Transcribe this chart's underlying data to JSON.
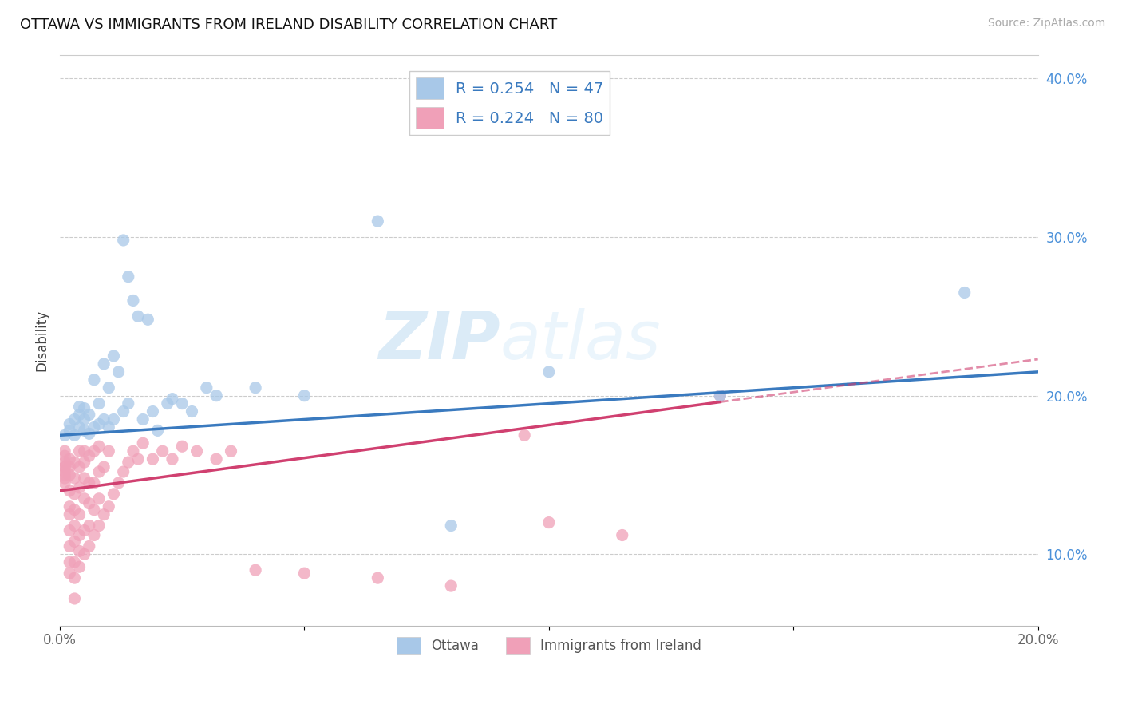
{
  "title": "OTTAWA VS IMMIGRANTS FROM IRELAND DISABILITY CORRELATION CHART",
  "source": "Source: ZipAtlas.com",
  "ylabel": "Disability",
  "watermark": "ZIPatlas",
  "xlim": [
    0.0,
    0.2
  ],
  "ylim": [
    0.055,
    0.415
  ],
  "ottawa_R": 0.254,
  "ottawa_N": 47,
  "ireland_R": 0.224,
  "ireland_N": 80,
  "ottawa_color": "#a8c8e8",
  "ireland_color": "#f0a0b8",
  "trend_ottawa_color": "#3a7abf",
  "trend_ireland_color": "#d04070",
  "ottawa_scatter_x": [
    0.001,
    0.002,
    0.002,
    0.003,
    0.003,
    0.004,
    0.004,
    0.004,
    0.005,
    0.005,
    0.005,
    0.006,
    0.006,
    0.007,
    0.007,
    0.008,
    0.008,
    0.009,
    0.009,
    0.01,
    0.01,
    0.011,
    0.011,
    0.012,
    0.013,
    0.013,
    0.014,
    0.014,
    0.015,
    0.016,
    0.017,
    0.018,
    0.019,
    0.02,
    0.022,
    0.023,
    0.025,
    0.027,
    0.03,
    0.032,
    0.04,
    0.05,
    0.065,
    0.08,
    0.1,
    0.135,
    0.185
  ],
  "ottawa_scatter_y": [
    0.175,
    0.178,
    0.182,
    0.175,
    0.185,
    0.18,
    0.188,
    0.193,
    0.178,
    0.185,
    0.192,
    0.176,
    0.188,
    0.18,
    0.21,
    0.182,
    0.195,
    0.185,
    0.22,
    0.18,
    0.205,
    0.185,
    0.225,
    0.215,
    0.19,
    0.298,
    0.195,
    0.275,
    0.26,
    0.25,
    0.185,
    0.248,
    0.19,
    0.178,
    0.195,
    0.198,
    0.195,
    0.19,
    0.205,
    0.2,
    0.205,
    0.2,
    0.31,
    0.118,
    0.215,
    0.2,
    0.265
  ],
  "ireland_scatter_x": [
    0.001,
    0.001,
    0.001,
    0.001,
    0.001,
    0.001,
    0.001,
    0.001,
    0.001,
    0.002,
    0.002,
    0.002,
    0.002,
    0.002,
    0.002,
    0.002,
    0.002,
    0.002,
    0.002,
    0.003,
    0.003,
    0.003,
    0.003,
    0.003,
    0.003,
    0.003,
    0.003,
    0.003,
    0.004,
    0.004,
    0.004,
    0.004,
    0.004,
    0.004,
    0.004,
    0.005,
    0.005,
    0.005,
    0.005,
    0.005,
    0.005,
    0.006,
    0.006,
    0.006,
    0.006,
    0.006,
    0.007,
    0.007,
    0.007,
    0.007,
    0.008,
    0.008,
    0.008,
    0.008,
    0.009,
    0.009,
    0.01,
    0.01,
    0.011,
    0.012,
    0.013,
    0.014,
    0.015,
    0.016,
    0.017,
    0.019,
    0.021,
    0.023,
    0.025,
    0.028,
    0.032,
    0.035,
    0.04,
    0.05,
    0.065,
    0.08,
    0.095,
    0.1,
    0.115,
    0.135
  ],
  "ireland_scatter_y": [
    0.15,
    0.155,
    0.158,
    0.162,
    0.165,
    0.155,
    0.148,
    0.152,
    0.145,
    0.088,
    0.095,
    0.105,
    0.115,
    0.125,
    0.13,
    0.14,
    0.15,
    0.155,
    0.16,
    0.072,
    0.085,
    0.095,
    0.108,
    0.118,
    0.128,
    0.138,
    0.148,
    0.158,
    0.092,
    0.102,
    0.112,
    0.125,
    0.142,
    0.155,
    0.165,
    0.1,
    0.115,
    0.135,
    0.148,
    0.158,
    0.165,
    0.105,
    0.118,
    0.132,
    0.145,
    0.162,
    0.112,
    0.128,
    0.145,
    0.165,
    0.118,
    0.135,
    0.152,
    0.168,
    0.125,
    0.155,
    0.13,
    0.165,
    0.138,
    0.145,
    0.152,
    0.158,
    0.165,
    0.16,
    0.17,
    0.16,
    0.165,
    0.16,
    0.168,
    0.165,
    0.16,
    0.165,
    0.09,
    0.088,
    0.085,
    0.08,
    0.175,
    0.12,
    0.112,
    0.2
  ],
  "legend_entries": [
    {
      "label": "R = 0.254   N = 47",
      "color": "#a8c8e8"
    },
    {
      "label": "R = 0.224   N = 80",
      "color": "#f0a0b8"
    }
  ],
  "bottom_legend": [
    "Ottawa",
    "Immigrants from Ireland"
  ],
  "bottom_legend_colors": [
    "#a8c8e8",
    "#f0a0b8"
  ]
}
